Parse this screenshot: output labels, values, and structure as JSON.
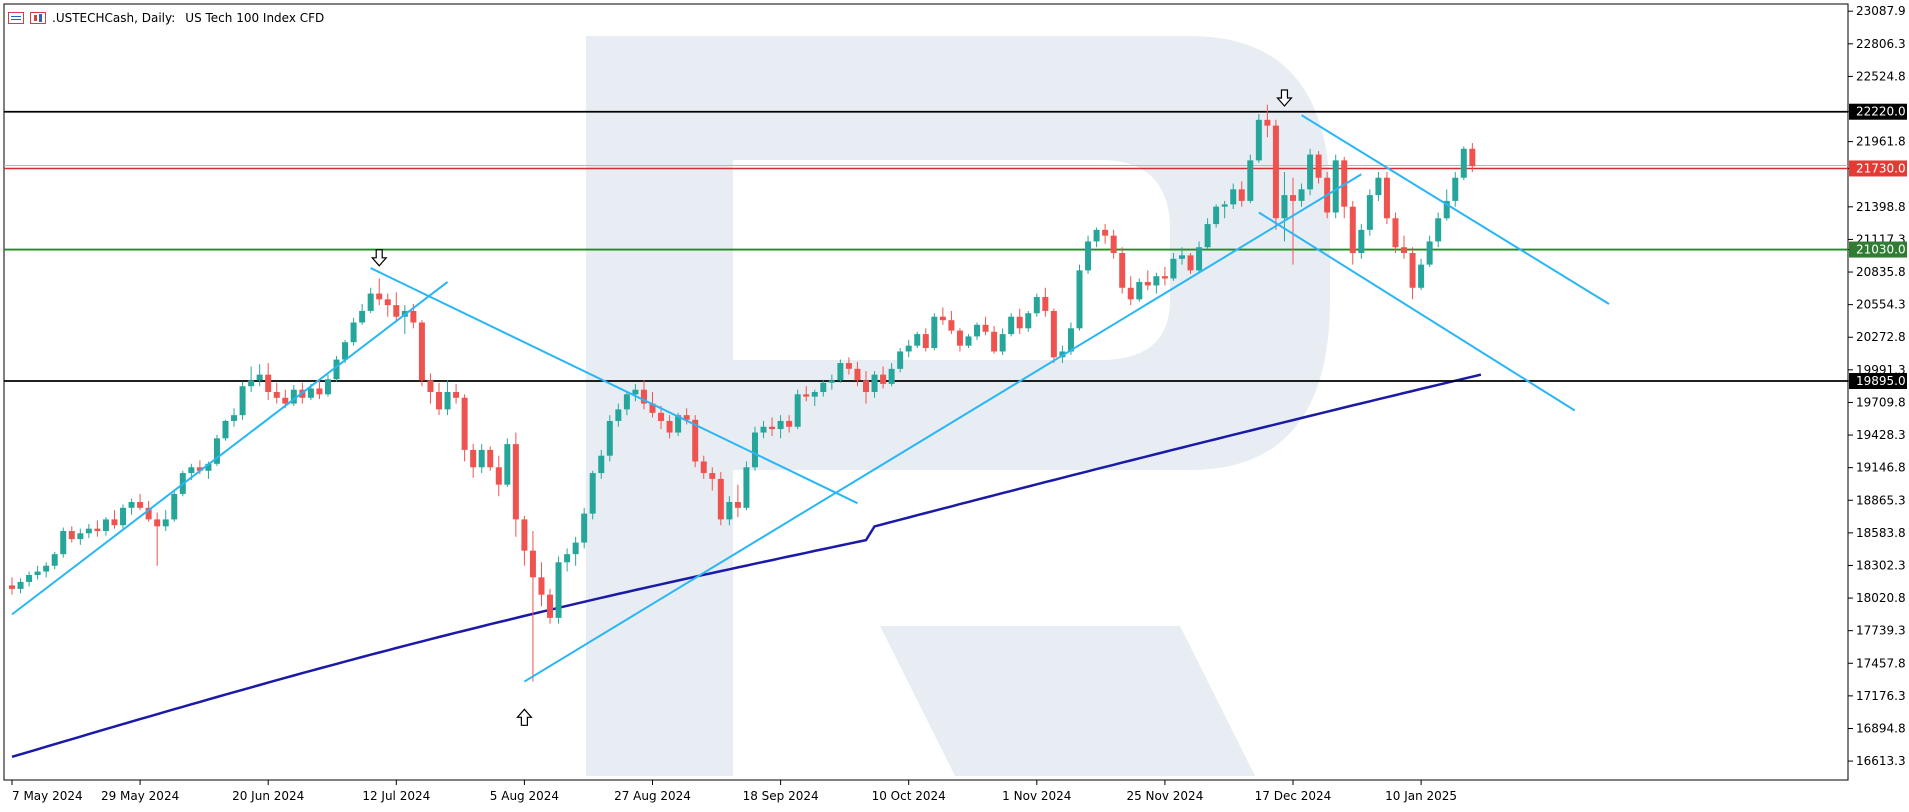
{
  "header": {
    "symbol": ".USTECHCash, Daily:",
    "description": "US Tech 100 Index CFD",
    "icons": [
      "chart-window-icon",
      "bar-chart-icon"
    ]
  },
  "colors": {
    "bull_candle": "#26a69a",
    "bear_candle": "#ef5350",
    "trendline": "#29b6f6",
    "moving_average": "#1a1aa6",
    "resistance_line": "#000000",
    "support_line": "#1e8c1e",
    "current_price_line": "#d32f2f",
    "price_tag_black": "#000000",
    "price_tag_red": "#e53935",
    "price_tag_green": "#2e7d32",
    "watermark": "#e8edf4"
  },
  "chart_data": {
    "type": "candlestick",
    "title": ".USTECHCash, Daily: US Tech 100 Index CFD",
    "ylim": [
      16450,
      23150
    ],
    "y_ticks": [
      "23087.9",
      "22806.3",
      "22524.8",
      "22220.0",
      "21961.8",
      "21730.0",
      "21398.8",
      "21117.3",
      "21030.0",
      "20835.8",
      "20554.3",
      "20272.8",
      "19991.3",
      "19895.0",
      "19709.8",
      "19428.3",
      "19146.8",
      "18865.3",
      "18583.8",
      "18302.3",
      "18020.8",
      "17739.3",
      "17457.8",
      "17176.3",
      "16894.8",
      "16613.3"
    ],
    "x_ticks": [
      "7 May 2024",
      "29 May 2024",
      "20 Jun 2024",
      "12 Jul 2024",
      "5 Aug 2024",
      "27 Aug 2024",
      "18 Sep 2024",
      "10 Oct 2024",
      "1 Nov 2024",
      "25 Nov 2024",
      "17 Dec 2024",
      "10 Jan 2025"
    ],
    "x_tick_bars": [
      0,
      15,
      30,
      45,
      60,
      75,
      90,
      105,
      120,
      135,
      150,
      165
    ],
    "horizontal_levels": [
      {
        "price": 22220.0,
        "label": "22220.0",
        "role": "resistance"
      },
      {
        "price": 21730.0,
        "label": "21730.0",
        "role": "current"
      },
      {
        "price": 21030.0,
        "label": "21030.0",
        "role": "support"
      },
      {
        "price": 19895.0,
        "label": "19895.0",
        "role": "resistance"
      }
    ],
    "candles_ohlc": [
      [
        18130,
        18200,
        18050,
        18100
      ],
      [
        18100,
        18190,
        18060,
        18160
      ],
      [
        18160,
        18250,
        18120,
        18220
      ],
      [
        18220,
        18300,
        18180,
        18250
      ],
      [
        18250,
        18330,
        18200,
        18300
      ],
      [
        18300,
        18420,
        18270,
        18400
      ],
      [
        18400,
        18630,
        18370,
        18600
      ],
      [
        18600,
        18640,
        18500,
        18530
      ],
      [
        18530,
        18620,
        18480,
        18580
      ],
      [
        18580,
        18660,
        18540,
        18620
      ],
      [
        18620,
        18690,
        18550,
        18600
      ],
      [
        18600,
        18720,
        18560,
        18700
      ],
      [
        18700,
        18780,
        18620,
        18650
      ],
      [
        18650,
        18830,
        18620,
        18800
      ],
      [
        18800,
        18880,
        18740,
        18850
      ],
      [
        18850,
        18920,
        18780,
        18800
      ],
      [
        18800,
        18860,
        18680,
        18700
      ],
      [
        18700,
        18760,
        18300,
        18640
      ],
      [
        18640,
        18780,
        18600,
        18700
      ],
      [
        18700,
        18950,
        18680,
        18920
      ],
      [
        18920,
        19120,
        18900,
        19100
      ],
      [
        19100,
        19180,
        19040,
        19150
      ],
      [
        19150,
        19210,
        19090,
        19120
      ],
      [
        19120,
        19200,
        19050,
        19180
      ],
      [
        19180,
        19430,
        19160,
        19400
      ],
      [
        19400,
        19560,
        19380,
        19550
      ],
      [
        19550,
        19660,
        19500,
        19600
      ],
      [
        19600,
        19890,
        19560,
        19850
      ],
      [
        19850,
        20020,
        19800,
        19900
      ],
      [
        19900,
        20040,
        19850,
        19950
      ],
      [
        19950,
        20050,
        19730,
        19800
      ],
      [
        19800,
        19880,
        19700,
        19750
      ],
      [
        19750,
        19820,
        19660,
        19700
      ],
      [
        19700,
        19860,
        19680,
        19820
      ],
      [
        19820,
        19880,
        19700,
        19750
      ],
      [
        19750,
        19870,
        19730,
        19830
      ],
      [
        19830,
        19900,
        19740,
        19780
      ],
      [
        19780,
        19950,
        19760,
        19910
      ],
      [
        19910,
        20110,
        19890,
        20080
      ],
      [
        20080,
        20250,
        20050,
        20230
      ],
      [
        20230,
        20440,
        20200,
        20400
      ],
      [
        20400,
        20560,
        20380,
        20500
      ],
      [
        20500,
        20700,
        20480,
        20650
      ],
      [
        20650,
        20780,
        20550,
        20600
      ],
      [
        20600,
        20650,
        20450,
        20550
      ],
      [
        20550,
        20660,
        20400,
        20450
      ],
      [
        20450,
        20550,
        20300,
        20500
      ],
      [
        20500,
        20560,
        20350,
        20400
      ],
      [
        20400,
        20420,
        19850,
        19900
      ],
      [
        19900,
        19960,
        19700,
        19800
      ],
      [
        19800,
        19880,
        19600,
        19650
      ],
      [
        19650,
        19900,
        19600,
        19800
      ],
      [
        19800,
        19870,
        19700,
        19750
      ],
      [
        19750,
        19780,
        19200,
        19300
      ],
      [
        19300,
        19350,
        19060,
        19150
      ],
      [
        19150,
        19350,
        19100,
        19300
      ],
      [
        19300,
        19330,
        19120,
        19150
      ],
      [
        19150,
        19250,
        18900,
        19000
      ],
      [
        19000,
        19400,
        18980,
        19350
      ],
      [
        19350,
        19450,
        18550,
        18700
      ],
      [
        18700,
        18730,
        18300,
        18430
      ],
      [
        18430,
        18600,
        17300,
        18200
      ],
      [
        18200,
        18330,
        17950,
        18050
      ],
      [
        18050,
        18100,
        17800,
        17850
      ],
      [
        17850,
        18380,
        17800,
        18330
      ],
      [
        18330,
        18450,
        18250,
        18400
      ],
      [
        18400,
        18550,
        18300,
        18500
      ],
      [
        18500,
        18800,
        18450,
        18750
      ],
      [
        18750,
        19120,
        18700,
        19100
      ],
      [
        19100,
        19300,
        19050,
        19250
      ],
      [
        19250,
        19600,
        19200,
        19550
      ],
      [
        19550,
        19700,
        19500,
        19650
      ],
      [
        19650,
        19810,
        19600,
        19780
      ],
      [
        19780,
        19870,
        19720,
        19820
      ],
      [
        19820,
        19900,
        19650,
        19700
      ],
      [
        19700,
        19800,
        19580,
        19620
      ],
      [
        19620,
        19680,
        19480,
        19550
      ],
      [
        19550,
        19600,
        19400,
        19450
      ],
      [
        19450,
        19620,
        19420,
        19600
      ],
      [
        19600,
        19660,
        19520,
        19560
      ],
      [
        19560,
        19600,
        19150,
        19200
      ],
      [
        19200,
        19250,
        19050,
        19100
      ],
      [
        19100,
        19150,
        18950,
        19050
      ],
      [
        19050,
        19110,
        18650,
        18700
      ],
      [
        18700,
        18900,
        18650,
        18850
      ],
      [
        18850,
        19000,
        18720,
        18800
      ],
      [
        18800,
        19200,
        18780,
        19150
      ],
      [
        19150,
        19500,
        19120,
        19450
      ],
      [
        19450,
        19550,
        19400,
        19500
      ],
      [
        19500,
        19580,
        19420,
        19480
      ],
      [
        19480,
        19600,
        19400,
        19550
      ],
      [
        19550,
        19600,
        19450,
        19500
      ],
      [
        19500,
        19820,
        19480,
        19780
      ],
      [
        19780,
        19850,
        19720,
        19760
      ],
      [
        19760,
        19820,
        19680,
        19800
      ],
      [
        19800,
        19900,
        19760,
        19880
      ],
      [
        19880,
        19950,
        19820,
        19900
      ],
      [
        19900,
        20080,
        19880,
        20050
      ],
      [
        20050,
        20100,
        19950,
        20000
      ],
      [
        20000,
        20060,
        19850,
        19900
      ],
      [
        19900,
        19980,
        19700,
        19800
      ],
      [
        19800,
        19980,
        19750,
        19950
      ],
      [
        19950,
        20020,
        19830,
        19870
      ],
      [
        19870,
        20050,
        19850,
        20000
      ],
      [
        20000,
        20180,
        19970,
        20150
      ],
      [
        20150,
        20250,
        20100,
        20200
      ],
      [
        20200,
        20320,
        20180,
        20300
      ],
      [
        20300,
        20350,
        20150,
        20180
      ],
      [
        20180,
        20480,
        20160,
        20450
      ],
      [
        20450,
        20530,
        20380,
        20420
      ],
      [
        20420,
        20500,
        20300,
        20330
      ],
      [
        20330,
        20350,
        20150,
        20200
      ],
      [
        20200,
        20300,
        20180,
        20280
      ],
      [
        20280,
        20400,
        20250,
        20380
      ],
      [
        20380,
        20450,
        20290,
        20320
      ],
      [
        20320,
        20370,
        20130,
        20150
      ],
      [
        20150,
        20350,
        20120,
        20300
      ],
      [
        20300,
        20480,
        20280,
        20450
      ],
      [
        20450,
        20520,
        20300,
        20350
      ],
      [
        20350,
        20500,
        20320,
        20480
      ],
      [
        20480,
        20650,
        20450,
        20620
      ],
      [
        20620,
        20700,
        20450,
        20500
      ],
      [
        20500,
        20520,
        20050,
        20100
      ],
      [
        20100,
        20200,
        20050,
        20150
      ],
      [
        20150,
        20400,
        20120,
        20350
      ],
      [
        20350,
        20900,
        20330,
        20850
      ],
      [
        20850,
        21150,
        20820,
        21100
      ],
      [
        21100,
        21220,
        21050,
        21200
      ],
      [
        21200,
        21250,
        21080,
        21150
      ],
      [
        21150,
        21200,
        20950,
        21000
      ],
      [
        21000,
        21050,
        20650,
        20700
      ],
      [
        20700,
        20800,
        20550,
        20600
      ],
      [
        20600,
        20780,
        20580,
        20750
      ],
      [
        20750,
        20850,
        20680,
        20720
      ],
      [
        20720,
        20830,
        20650,
        20800
      ],
      [
        20800,
        20880,
        20720,
        20780
      ],
      [
        20780,
        21000,
        20760,
        20950
      ],
      [
        20950,
        21050,
        20900,
        20980
      ],
      [
        20980,
        21000,
        20820,
        20850
      ],
      [
        20850,
        21100,
        20830,
        21050
      ],
      [
        21050,
        21300,
        21030,
        21250
      ],
      [
        21250,
        21420,
        21220,
        21400
      ],
      [
        21400,
        21450,
        21300,
        21420
      ],
      [
        21420,
        21600,
        21380,
        21550
      ],
      [
        21550,
        21620,
        21400,
        21450
      ],
      [
        21450,
        21850,
        21430,
        21800
      ],
      [
        21800,
        22200,
        21780,
        22150
      ],
      [
        22150,
        22280,
        22000,
        22100
      ],
      [
        22100,
        22150,
        21200,
        21300
      ],
      [
        21300,
        21700,
        21100,
        21500
      ],
      [
        21500,
        21650,
        20900,
        21450
      ],
      [
        21450,
        21600,
        21400,
        21550
      ],
      [
        21550,
        21900,
        21500,
        21850
      ],
      [
        21850,
        21880,
        21600,
        21650
      ],
      [
        21650,
        21700,
        21300,
        21350
      ],
      [
        21350,
        21850,
        21300,
        21800
      ],
      [
        21800,
        21830,
        21300,
        21400
      ],
      [
        21400,
        21450,
        20900,
        21000
      ],
      [
        21000,
        21250,
        20950,
        21200
      ],
      [
        21200,
        21550,
        21150,
        21500
      ],
      [
        21500,
        21700,
        21450,
        21650
      ],
      [
        21650,
        21700,
        21250,
        21300
      ],
      [
        21300,
        21350,
        21000,
        21050
      ],
      [
        21050,
        21150,
        20950,
        21000
      ],
      [
        21000,
        21050,
        20600,
        20700
      ],
      [
        20700,
        20950,
        20680,
        20900
      ],
      [
        20900,
        21150,
        20880,
        21100
      ],
      [
        21100,
        21350,
        21050,
        21300
      ],
      [
        21300,
        21550,
        21280,
        21450
      ],
      [
        21450,
        21700,
        21400,
        21650
      ],
      [
        21650,
        21920,
        21630,
        21900
      ],
      [
        21900,
        21950,
        21700,
        21750
      ]
    ],
    "moving_average_ends": [
      [
        0,
        16650
      ],
      [
        100,
        18620
      ],
      [
        172,
        19950
      ]
    ],
    "trendlines": [
      {
        "from": [
          0,
          17880
        ],
        "to": [
          51,
          20750
        ]
      },
      {
        "from": [
          42,
          20870
        ],
        "to": [
          99,
          18840
        ]
      },
      {
        "from": [
          60,
          17300
        ],
        "to": [
          158,
          21680
        ]
      },
      {
        "from": [
          151,
          22190
        ],
        "to": [
          187,
          20560
        ]
      },
      {
        "from": [
          146,
          21350
        ],
        "to": [
          183,
          19640
        ]
      }
    ],
    "arrows": [
      {
        "bar": 43,
        "price": 20950,
        "direction": "down"
      },
      {
        "bar": 149,
        "price": 22330,
        "direction": "down"
      },
      {
        "bar": 60,
        "price": 17000,
        "direction": "up"
      }
    ]
  }
}
